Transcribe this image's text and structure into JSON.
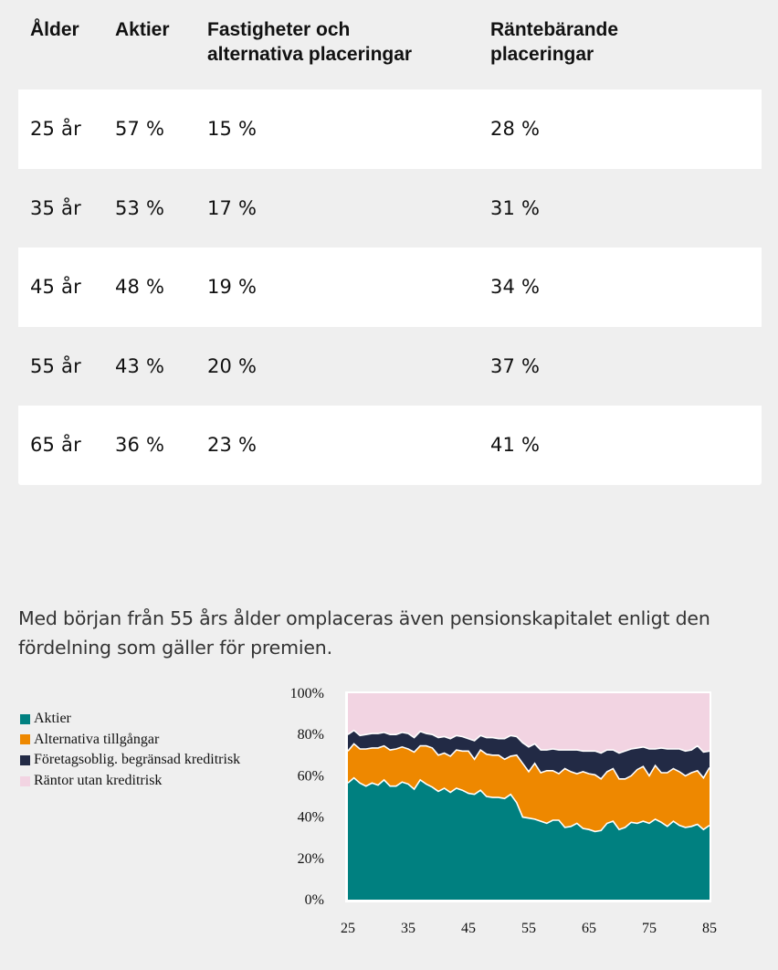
{
  "table": {
    "headers": [
      "Ålder",
      "Aktier",
      "Fastigheter och\nalternativa placeringar",
      "Räntebärande\nplaceringar"
    ],
    "rows": [
      [
        "25 år",
        "57 %",
        "15 %",
        "28 %"
      ],
      [
        "35 år",
        "53 %",
        "17 %",
        "31 %"
      ],
      [
        "45 år",
        "48 %",
        "19 %",
        "34 %"
      ],
      [
        "55 år",
        "43 %",
        "20 %",
        "37 %"
      ],
      [
        "65 år",
        "36 %",
        "23 %",
        "41 %"
      ]
    ]
  },
  "lead_text": "Med början från 55 års ålder omplaceras även pensionskapitalet enligt den fördelning som gäller för premien.",
  "chart_data": {
    "type": "area",
    "stacked": true,
    "title": "",
    "xlabel": "",
    "ylabel": "",
    "x": [
      25,
      26,
      27,
      28,
      29,
      30,
      31,
      32,
      33,
      34,
      35,
      36,
      37,
      38,
      39,
      40,
      41,
      42,
      43,
      44,
      45,
      46,
      47,
      48,
      49,
      50,
      51,
      52,
      53,
      54,
      55,
      56,
      57,
      58,
      59,
      60,
      61,
      62,
      63,
      64,
      65,
      66,
      67,
      68,
      69,
      70,
      71,
      72,
      73,
      74,
      75,
      76,
      77,
      78,
      79,
      80,
      81,
      82,
      83,
      84,
      85
    ],
    "xticks": [
      "25",
      "35",
      "45",
      "55",
      "65",
      "75",
      "85"
    ],
    "xlim": [
      25,
      85
    ],
    "yticks": [
      "0%",
      "20%",
      "40%",
      "60%",
      "80%",
      "100%"
    ],
    "ylim": [
      0,
      100
    ],
    "legend_position": "left",
    "series": [
      {
        "name": "Aktier",
        "color": "#008080",
        "values": [
          56.5,
          59,
          56.5,
          55,
          56.5,
          55.5,
          58,
          55,
          55,
          57,
          56,
          53.5,
          58,
          56,
          54.5,
          52.5,
          54,
          52,
          54,
          53,
          51.5,
          51,
          53,
          50,
          49.5,
          49.5,
          49,
          51,
          47,
          40,
          39.5,
          39,
          38,
          37,
          38.5,
          38.5,
          35,
          35.5,
          37,
          34.5,
          34,
          33,
          33.5,
          37,
          38,
          34,
          35,
          37.5,
          37,
          38,
          37,
          39,
          37.5,
          35.5,
          38,
          36,
          35,
          35.5,
          36.5,
          34,
          36
        ]
      },
      {
        "name": "Alternativa tillgångar",
        "color": "#EE8800",
        "values": [
          15.5,
          16.5,
          16.5,
          18,
          17,
          18,
          16.5,
          17.5,
          18,
          17,
          17,
          18,
          16.5,
          18.5,
          19,
          17.5,
          17,
          17.5,
          18.5,
          19,
          20.5,
          17,
          19.5,
          20.5,
          20.5,
          20.5,
          19,
          18.5,
          23,
          26,
          22.5,
          27,
          23.5,
          25.5,
          24,
          22.5,
          28.5,
          26.5,
          24,
          27.5,
          27,
          27.5,
          25,
          25,
          25.5,
          24.5,
          23.5,
          22.5,
          26,
          26.5,
          23,
          26,
          24,
          26,
          25.5,
          26,
          25,
          26,
          26,
          25,
          28
        ]
      },
      {
        "name": "Företagsoblig. begränsad kreditrisk",
        "color": "#222A45",
        "values": [
          8,
          6.5,
          6.5,
          7,
          7,
          7,
          6.5,
          7.5,
          7,
          7,
          7.5,
          7,
          7,
          6,
          6.5,
          8.5,
          8,
          8.5,
          7,
          7,
          6,
          9,
          7,
          8,
          8.5,
          8,
          10,
          10,
          9,
          10,
          12,
          9.5,
          11,
          10,
          10.5,
          11.5,
          9,
          10.5,
          11.5,
          10,
          11,
          11.5,
          12.5,
          10.5,
          9,
          12.5,
          13.5,
          13,
          10.5,
          9.5,
          13,
          8,
          12,
          11.5,
          9.5,
          11,
          12,
          11,
          12,
          12.5,
          8
        ]
      },
      {
        "name": "Räntor utan kreditrisk",
        "color": "#F2D4E2",
        "values": [
          20,
          18,
          20.5,
          20,
          19.5,
          19.5,
          19,
          20,
          20,
          19,
          19.5,
          21.5,
          18.5,
          19.5,
          20,
          21.5,
          21,
          22,
          20.5,
          21,
          22,
          23,
          20.5,
          21.5,
          21.5,
          22,
          22,
          20.5,
          21,
          24,
          26,
          24.5,
          27.5,
          27.5,
          27,
          27.5,
          27.5,
          27.5,
          27.5,
          28,
          28,
          28,
          29,
          27.5,
          27.5,
          29,
          28,
          27,
          26.5,
          26,
          27,
          27,
          26.5,
          27,
          27,
          27,
          28,
          27.5,
          25.5,
          28.5,
          28
        ]
      }
    ]
  }
}
